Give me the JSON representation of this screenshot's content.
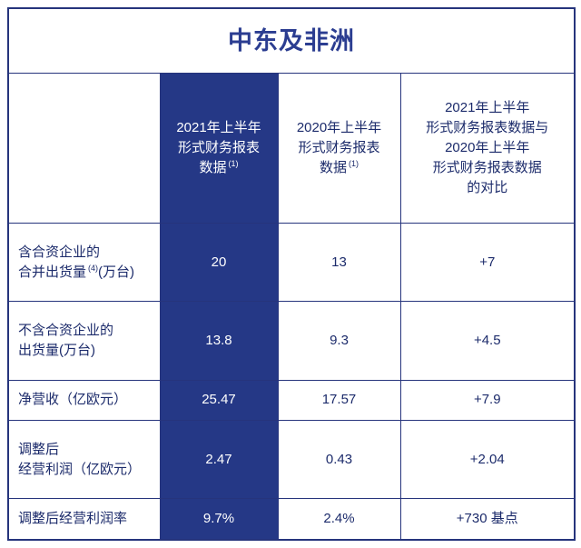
{
  "title": "中东及非洲",
  "columns": [
    {
      "lines": [
        "2021年上半年",
        "形式财务报表",
        "数据"
      ],
      "note": "(1)"
    },
    {
      "lines": [
        "2020年上半年",
        "形式财务报表",
        "数据"
      ],
      "note": "(1)"
    },
    {
      "lines": [
        "2021年上半年",
        "形式财务报表数据与",
        "2020年上半年",
        "形式财务报表数据",
        "的对比"
      ]
    }
  ],
  "rows": [
    {
      "label": [
        "含合资企业的",
        "合并出货量"
      ],
      "note": "(4)",
      "label_tail": "(万台)",
      "cells": [
        "20",
        "13",
        "+7"
      ]
    },
    {
      "label": [
        "不含合资企业的",
        "出货量(万台)"
      ],
      "cells": [
        "13.8",
        "9.3",
        "+4.5"
      ]
    },
    {
      "label": [
        "净营收（亿欧元）"
      ],
      "cells": [
        "25.47",
        "17.57",
        "+7.9"
      ]
    },
    {
      "label": [
        "调整后",
        "经营利润（亿欧元）"
      ],
      "cells": [
        "2.47",
        "0.43",
        "+2.04"
      ]
    },
    {
      "label": [
        "调整后经营利润率"
      ],
      "cells": [
        "9.7%",
        "2.4%",
        "+730 基点"
      ]
    }
  ]
}
